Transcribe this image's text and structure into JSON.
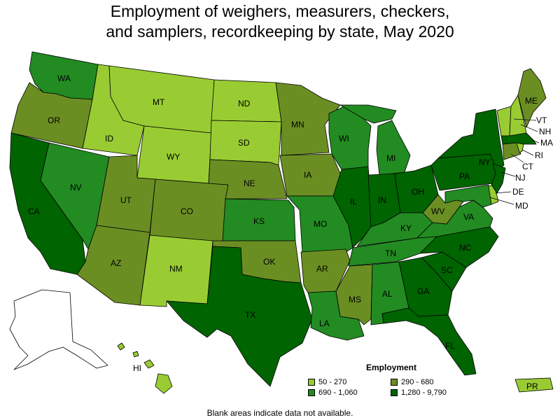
{
  "title": {
    "line1": "Employment of weighers, measurers, checkers,",
    "line2": "and samplers, recordkeeping by state, May 2020"
  },
  "colors": {
    "c1": "#99cc33",
    "c2": "#6b8e23",
    "c3": "#228b22",
    "c4": "#006400"
  },
  "legend": {
    "title": "Employment",
    "items": [
      {
        "label": "50 - 270",
        "color": "#99cc33"
      },
      {
        "label": "290 - 680",
        "color": "#6b8e23"
      },
      {
        "label": "690 - 1,060",
        "color": "#228b22"
      },
      {
        "label": "1,280 - 9,790",
        "color": "#006400"
      }
    ]
  },
  "note": "Blank areas indicate data not available.",
  "states": {
    "WA": "c3",
    "OR": "c2",
    "CA": "c4",
    "NV": "c3",
    "ID": "c1",
    "MT": "c1",
    "WY": "c1",
    "UT": "c2",
    "AZ": "c2",
    "CO": "c2",
    "NM": "c1",
    "ND": "c1",
    "SD": "c1",
    "NE": "c2",
    "KS": "c3",
    "OK": "c2",
    "TX": "c4",
    "MN": "c2",
    "IA": "c2",
    "MO": "c3",
    "AR": "c2",
    "LA": "c3",
    "WI": "c3",
    "IL": "c4",
    "MS": "c2",
    "MI": "c3",
    "IN": "c4",
    "OH": "c4",
    "KY": "c3",
    "TN": "c3",
    "AL": "c3",
    "GA": "c4",
    "FL": "c4",
    "SC": "c4",
    "NC": "c4",
    "VA": "c3",
    "WV": "c2",
    "PA": "c4",
    "NY": "c4",
    "ME": "c2",
    "VT": "c1",
    "NH": "c1",
    "MA": "c4",
    "RI": "c1",
    "CT": "c2",
    "NJ": "c4",
    "DE": "c1",
    "MD": "c3",
    "HI": "c1",
    "PR": "c1"
  },
  "labels": {
    "WA": "WA",
    "OR": "OR",
    "CA": "CA",
    "NV": "NV",
    "ID": "ID",
    "MT": "MT",
    "WY": "WY",
    "UT": "UT",
    "AZ": "AZ",
    "CO": "CO",
    "NM": "NM",
    "ND": "ND",
    "SD": "SD",
    "NE": "NE",
    "KS": "KS",
    "OK": "OK",
    "TX": "TX",
    "MN": "MN",
    "IA": "IA",
    "MO": "MO",
    "AR": "AR",
    "LA": "LA",
    "WI": "WI",
    "IL": "IL",
    "MS": "MS",
    "MI": "MI",
    "IN": "IN",
    "OH": "OH",
    "KY": "KY",
    "TN": "TN",
    "AL": "AL",
    "GA": "GA",
    "FL": "FL",
    "SC": "SC",
    "NC": "NC",
    "VA": "VA",
    "WV": "WV",
    "PA": "PA",
    "NY": "NY",
    "ME": "ME",
    "VT": "VT",
    "NH": "NH",
    "MA": "MA",
    "RI": "RI",
    "CT": "CT",
    "NJ": "NJ",
    "DE": "DE",
    "MD": "MD",
    "HI": "HI",
    "PR": "PR"
  }
}
